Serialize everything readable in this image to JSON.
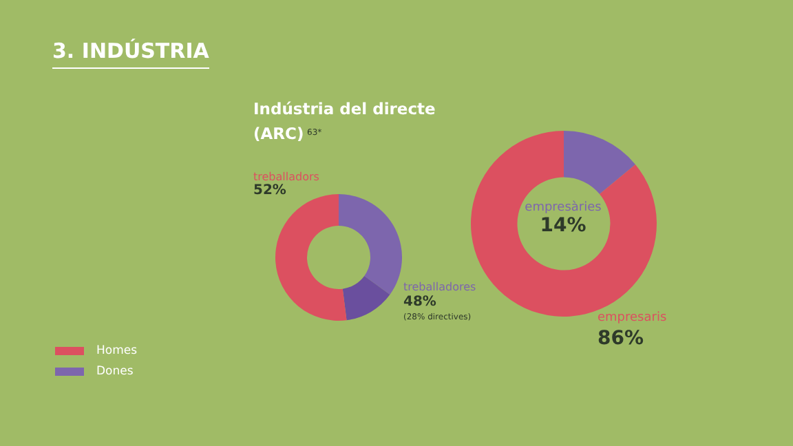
{
  "chart_data": [
    {
      "type": "donut",
      "title": "3. INDÚSTRIA",
      "subtitle": "Indústria del directe (ARC)",
      "categories": [
        "Dones",
        null,
        "Homes"
      ],
      "values": [
        35,
        13,
        52
      ],
      "colors": [
        "#7d66ad",
        "#6a4f9e",
        "#dc5060"
      ],
      "legend": "bottom left",
      "annotations": [
        "63*",
        "treballadors",
        "52%",
        "treballadores",
        "48%",
        "(28% directives)"
      ]
    },
    {
      "type": "donut",
      "categories": [
        null,
        null
      ],
      "values": [
        14,
        86
      ],
      "colors": [
        "#7d66ad",
        "#dc5060"
      ],
      "legend": false,
      "annotations": [
        "empresàries",
        "14%",
        "empresaris",
        "86%"
      ]
    }
  ]
}
